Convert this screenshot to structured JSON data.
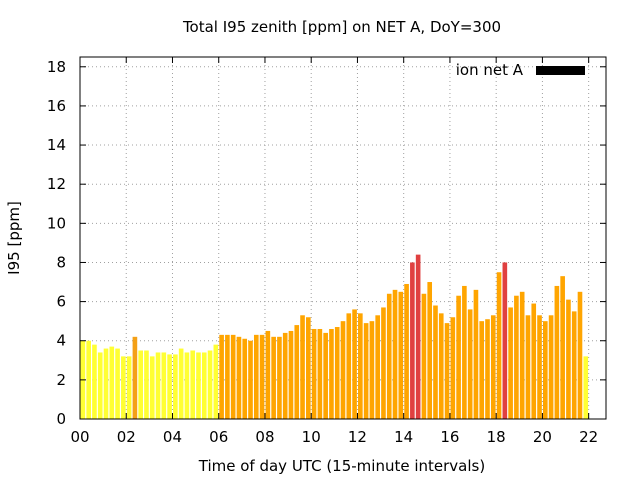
{
  "chart_data": {
    "type": "bar",
    "title": "Total I95 zenith [ppm] on NET A, DoY=300",
    "xlabel": "Time of day UTC (15-minute intervals)",
    "ylabel": "I95 [ppm]",
    "legend": {
      "label": "ion net A",
      "color": "#000000",
      "placement": "top-right"
    },
    "grid": true,
    "xlim": [
      0,
      22.75
    ],
    "ylim": [
      0,
      18.5
    ],
    "x_ticks": [
      0,
      2,
      4,
      6,
      8,
      10,
      12,
      14,
      16,
      18,
      20,
      22
    ],
    "x_tick_labels": [
      "00",
      "02",
      "04",
      "06",
      "08",
      "10",
      "12",
      "14",
      "16",
      "18",
      "20",
      "22"
    ],
    "y_ticks": [
      0,
      2,
      4,
      6,
      8,
      10,
      12,
      14,
      16,
      18
    ],
    "y_tick_labels": [
      "0",
      "2",
      "4",
      "6",
      "8",
      "10",
      "12",
      "14",
      "16",
      "18"
    ],
    "interval_hours": 0.25,
    "values": [
      4.0,
      4.0,
      3.8,
      3.4,
      3.6,
      3.7,
      3.6,
      3.2,
      3.2,
      4.2,
      3.5,
      3.5,
      3.2,
      3.4,
      3.4,
      3.3,
      3.3,
      3.6,
      3.4,
      3.5,
      3.4,
      3.4,
      3.5,
      3.8,
      4.3,
      4.3,
      4.3,
      4.2,
      4.1,
      4.0,
      4.3,
      4.3,
      4.5,
      4.2,
      4.2,
      4.4,
      4.5,
      4.8,
      5.3,
      5.2,
      4.6,
      4.6,
      4.4,
      4.6,
      4.7,
      5.0,
      5.4,
      5.6,
      5.4,
      4.9,
      5.0,
      5.3,
      5.7,
      6.4,
      6.6,
      6.5,
      6.9,
      8.0,
      8.4,
      6.4,
      7.0,
      5.8,
      5.4,
      4.9,
      5.2,
      6.3,
      6.8,
      5.6,
      6.6,
      5.0,
      5.1,
      5.3,
      7.5,
      8.0,
      5.7,
      6.3,
      6.5,
      5.3,
      5.9,
      5.3,
      5.0,
      5.3,
      6.8,
      7.3,
      6.1,
      5.5,
      6.5,
      3.2
    ],
    "bar_colors": [
      "#ffff33",
      "#ffff33",
      "#ffff33",
      "#ffff33",
      "#ffff33",
      "#ffff33",
      "#ffff33",
      "#ffff33",
      "#ffff33",
      "#f4a017",
      "#ffff33",
      "#ffff33",
      "#ffff33",
      "#ffff33",
      "#ffff33",
      "#ffff33",
      "#ffff33",
      "#ffff33",
      "#ffff33",
      "#ffff33",
      "#ffff33",
      "#ffff33",
      "#ffff33",
      "#ffff33",
      "#ffa500",
      "#ffa500",
      "#ffa500",
      "#ffa500",
      "#ffa500",
      "#ffa500",
      "#ffa500",
      "#ffa500",
      "#ffa500",
      "#ffa500",
      "#ffa500",
      "#ffa500",
      "#ffa500",
      "#ffa500",
      "#ffa500",
      "#ffa500",
      "#ffa500",
      "#ffa500",
      "#ffa500",
      "#ffa500",
      "#ffa500",
      "#ffa500",
      "#ffa500",
      "#ffa500",
      "#ffa500",
      "#ffa500",
      "#ffa500",
      "#ffa500",
      "#ffa500",
      "#ffa500",
      "#ffa500",
      "#ffa500",
      "#ffa500",
      "#e04040",
      "#e04040",
      "#ffa500",
      "#ffa500",
      "#ffa500",
      "#ffa500",
      "#ffa500",
      "#ffa500",
      "#ffa500",
      "#ffa500",
      "#ffa500",
      "#ffa500",
      "#ffa500",
      "#ffa500",
      "#ffa500",
      "#ffa500",
      "#e04040",
      "#ffa500",
      "#ffa500",
      "#ffa500",
      "#ffa500",
      "#ffa500",
      "#ffa500",
      "#ffa500",
      "#ffa500",
      "#ffa500",
      "#ffa500",
      "#ffa500",
      "#ffa500",
      "#ffa500",
      "#ffff33"
    ]
  }
}
